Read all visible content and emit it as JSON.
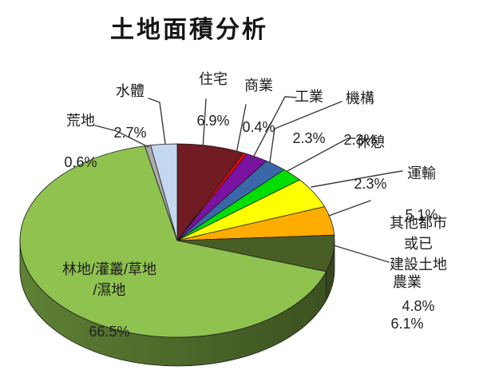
{
  "title": "土地面積分析",
  "chart_data": {
    "type": "pie",
    "style": "3d",
    "title": "土地面積分析",
    "unit": "%",
    "start_angle_deg": 0,
    "direction": "clockwise",
    "legend": "none",
    "slices": [
      {
        "label": "住宅",
        "value": 6.9,
        "pct": "6.9%",
        "color": "#701C22"
      },
      {
        "label": "商業",
        "value": 0.4,
        "pct": "0.4%",
        "color": "#FE0000"
      },
      {
        "label": "工業",
        "value": 2.3,
        "pct": "2.3%",
        "color": "#7B12A1"
      },
      {
        "label": "機構",
        "value": 2.3,
        "pct": "2.3%",
        "color": "#3A67A8"
      },
      {
        "label": "休憩",
        "value": 2.3,
        "pct": "2.3%",
        "color": "#00DF00"
      },
      {
        "label": "運輸",
        "value": 5.1,
        "pct": "5.1%",
        "color": "#FFFF00"
      },
      {
        "label": "其他都市或已建設土地",
        "value": 4.8,
        "pct": "4.8%",
        "color": "#FFAC00"
      },
      {
        "label": "農業",
        "value": 6.1,
        "pct": "6.1%",
        "color": "#495E24",
        "side": "#36461B"
      },
      {
        "label": "林地/灌叢/草地/濕地",
        "value": 66.5,
        "pct": "66.5%",
        "color": "#8FC24F",
        "side": [
          "#5E8134",
          "#3C5120"
        ]
      },
      {
        "label": "荒地",
        "value": 0.6,
        "pct": "0.6%",
        "color": "#ACACAC"
      },
      {
        "label": "水體",
        "value": 2.7,
        "pct": "2.7%",
        "color": "#C3D8F0"
      }
    ]
  },
  "callouts": {
    "wasteland": {
      "name": "荒地",
      "pct": "0.6%"
    },
    "water": {
      "name": "水體",
      "pct": "2.7%"
    },
    "residential": {
      "name": "住宅",
      "pct": "6.9%"
    },
    "commercial": {
      "name": "商業",
      "pct": "0.4%"
    },
    "industrial": {
      "name": "工業",
      "pct": "2.3%"
    },
    "institutional": {
      "name": "機構",
      "pct": "2.3%"
    },
    "recreation": {
      "name": "休憩",
      "pct": "2.3%"
    },
    "transport": {
      "name": "運輸",
      "pct": "5.1%"
    },
    "other_urban": {
      "name": "其他都市或已\n建設土地",
      "pct": "4.8%"
    },
    "agriculture": {
      "name": "農業",
      "pct": "6.1%"
    },
    "forest": {
      "name": "林地/灌叢/草地\n/濕地",
      "pct": "66.5%"
    }
  }
}
